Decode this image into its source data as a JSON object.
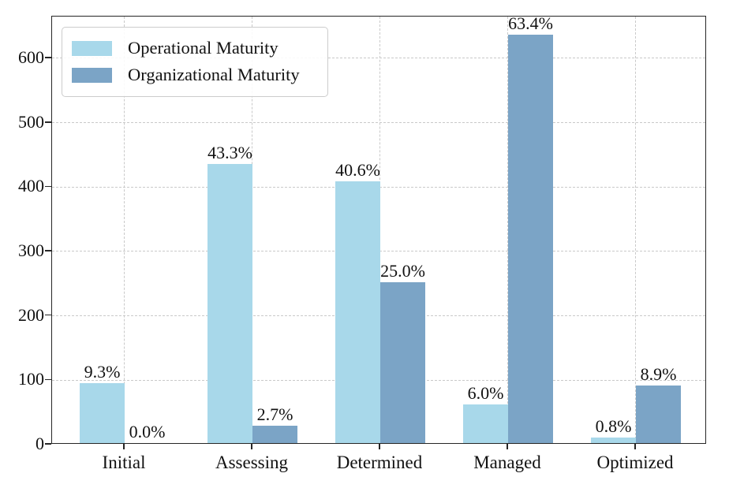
{
  "chart_data": {
    "type": "bar",
    "title": "",
    "xlabel": "",
    "ylabel": "",
    "categories": [
      "Initial",
      "Assessing",
      "Determined",
      "Managed",
      "Optimized"
    ],
    "series": [
      {
        "name": "Operational Maturity",
        "color": "#A8D8EA",
        "values": [
          93,
          433,
          406,
          60,
          8
        ],
        "value_labels": [
          "9.3%",
          "43.3%",
          "40.6%",
          "6.0%",
          "0.8%"
        ]
      },
      {
        "name": "Organizational Maturity",
        "color": "#7BA4C6",
        "values": [
          0,
          27,
          250,
          634,
          89
        ],
        "value_labels": [
          "0.0%",
          "2.7%",
          "25.0%",
          "63.4%",
          "8.9%"
        ]
      }
    ],
    "yticks": [
      "0",
      "100",
      "200",
      "300",
      "400",
      "500",
      "600"
    ],
    "ytick_values": [
      0,
      100,
      200,
      300,
      400,
      500,
      600
    ],
    "ylim": [
      0,
      665
    ],
    "grid": "dashed",
    "legend_position": "upper-left",
    "colors": {
      "grid": "#c9c9c9",
      "spine": "#262626",
      "text": "#111111"
    }
  }
}
